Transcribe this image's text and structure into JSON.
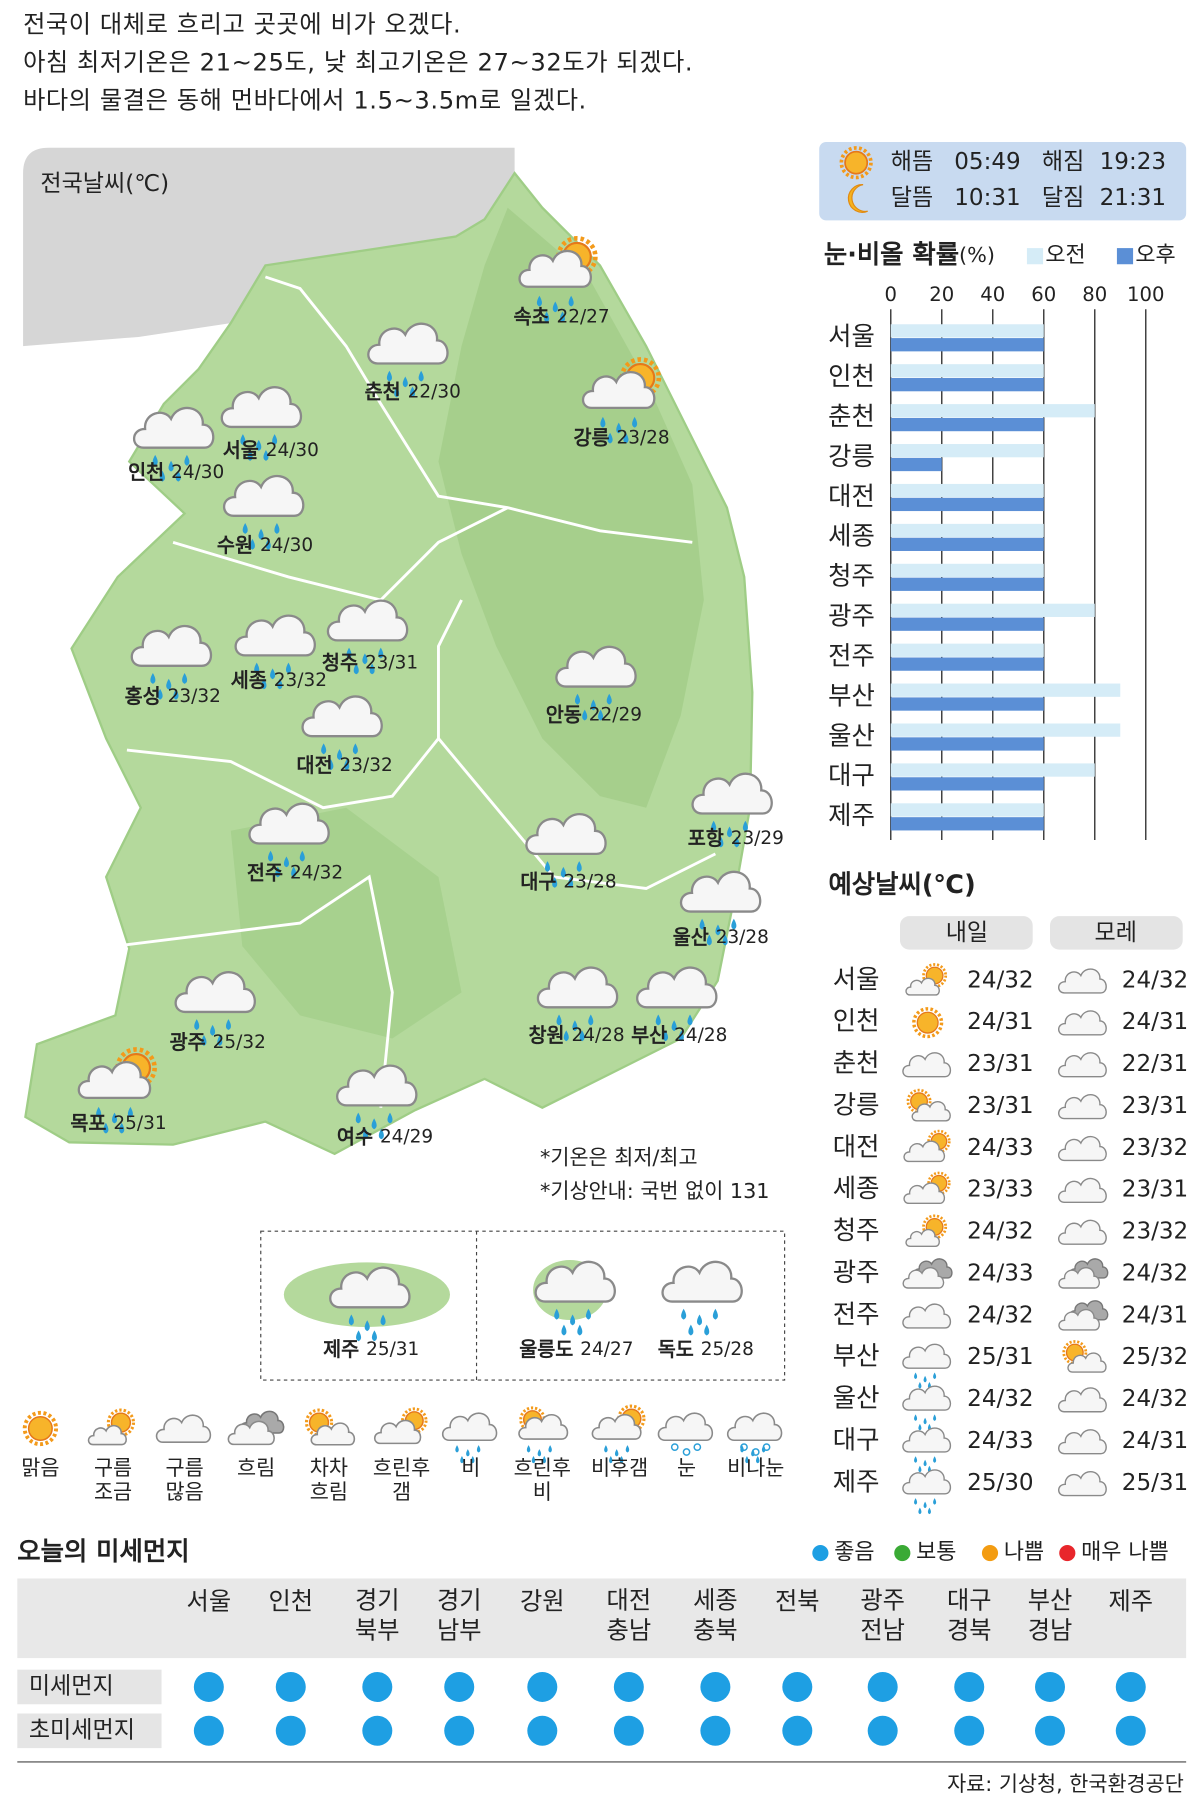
{
  "summary": [
    "전국이 대체로 흐리고 곳곳에 비가 오겠다.",
    "아침 최저기온은 21~25도, 낮 최고기온은 27~32도가 되겠다.",
    "바다의 물결은 동해 먼바다에서 1.5~3.5m로 일겠다."
  ],
  "map": {
    "title": "전국날씨(℃)",
    "cities": [
      {
        "name": "속초",
        "temp": "22/27",
        "icon": "비후갬"
      },
      {
        "name": "춘천",
        "temp": "22/30",
        "icon": "비"
      },
      {
        "name": "강릉",
        "temp": "23/28",
        "icon": "비후갬"
      },
      {
        "name": "서울",
        "temp": "24/30",
        "icon": "비"
      },
      {
        "name": "인천",
        "temp": "24/30",
        "icon": "비"
      },
      {
        "name": "수원",
        "temp": "24/30",
        "icon": "비"
      },
      {
        "name": "홍성",
        "temp": "23/32",
        "icon": "비"
      },
      {
        "name": "세종",
        "temp": "23/32",
        "icon": "비"
      },
      {
        "name": "청주",
        "temp": "23/31",
        "icon": "비"
      },
      {
        "name": "대전",
        "temp": "23/32",
        "icon": "비"
      },
      {
        "name": "안동",
        "temp": "22/29",
        "icon": "비"
      },
      {
        "name": "포항",
        "temp": "23/29",
        "icon": "비"
      },
      {
        "name": "전주",
        "temp": "24/32",
        "icon": "비"
      },
      {
        "name": "대구",
        "temp": "23/28",
        "icon": "비"
      },
      {
        "name": "울산",
        "temp": "23/28",
        "icon": "비"
      },
      {
        "name": "광주",
        "temp": "25/32",
        "icon": "비"
      },
      {
        "name": "창원",
        "temp": "24/28",
        "icon": "비"
      },
      {
        "name": "부산",
        "temp": "24/28",
        "icon": "비"
      },
      {
        "name": "목포",
        "temp": "25/31",
        "icon": "비후갬"
      },
      {
        "name": "여수",
        "temp": "24/29",
        "icon": "비"
      }
    ],
    "islands": [
      {
        "name": "제주",
        "temp": "25/31",
        "icon": "비"
      },
      {
        "name": "울릉도",
        "temp": "24/27",
        "icon": "비"
      },
      {
        "name": "독도",
        "temp": "25/28",
        "icon": "비"
      }
    ],
    "notes": [
      "*기온은 최저/최고",
      "*기상안내: 국번 없이 131"
    ]
  },
  "legend": [
    "맑음",
    "구름\n조금",
    "구름\n많음",
    "흐림",
    "차차\n흐림",
    "흐린후\n갬",
    "비",
    "흐린후\n비",
    "비후갬",
    "눈",
    "비나눈"
  ],
  "sun_moon": [
    {
      "label": "해뜸",
      "time": "05:49"
    },
    {
      "label": "해짐",
      "time": "19:23"
    },
    {
      "label": "달뜸",
      "time": "10:31"
    },
    {
      "label": "달짐",
      "time": "21:31"
    }
  ],
  "rain_chart": {
    "title": "눈·비올 확률",
    "unit": "(%)",
    "categories": [
      "서울",
      "인천",
      "춘천",
      "강릉",
      "대전",
      "세종",
      "청주",
      "광주",
      "전주",
      "부산",
      "울산",
      "대구",
      "제주"
    ],
    "series": [
      {
        "name": "오전",
        "color": "#d5ecf7",
        "values": [
          60,
          60,
          80,
          60,
          60,
          60,
          60,
          80,
          60,
          90,
          90,
          80,
          60
        ]
      },
      {
        "name": "오후",
        "color": "#5b8fd6",
        "values": [
          60,
          60,
          60,
          20,
          60,
          60,
          60,
          60,
          60,
          60,
          60,
          60,
          60
        ]
      }
    ],
    "xlim": [
      0,
      100
    ],
    "xticks": [
      0,
      20,
      40,
      60,
      80,
      100
    ]
  },
  "forecast": {
    "title": "예상날씨(℃)",
    "headers": [
      "내일",
      "모레"
    ],
    "rows": [
      {
        "city": "서울",
        "day1": {
          "icon": "구름\n조금",
          "temp": "24/32"
        },
        "day2": {
          "icon": "구름\n많음",
          "temp": "24/32"
        }
      },
      {
        "city": "인천",
        "day1": {
          "icon": "맑음",
          "temp": "24/31"
        },
        "day2": {
          "icon": "구름\n많음",
          "temp": "24/31"
        }
      },
      {
        "city": "춘천",
        "day1": {
          "icon": "구름\n많음",
          "temp": "23/31"
        },
        "day2": {
          "icon": "구름\n많음",
          "temp": "22/31"
        }
      },
      {
        "city": "강릉",
        "day1": {
          "icon": "차차\n흐림",
          "temp": "23/31"
        },
        "day2": {
          "icon": "구름\n많음",
          "temp": "23/31"
        }
      },
      {
        "city": "대전",
        "day1": {
          "icon": "흐린후\n갬",
          "temp": "24/33"
        },
        "day2": {
          "icon": "구름\n많음",
          "temp": "23/32"
        }
      },
      {
        "city": "세종",
        "day1": {
          "icon": "흐린후\n갬",
          "temp": "23/33"
        },
        "day2": {
          "icon": "구름\n많음",
          "temp": "23/31"
        }
      },
      {
        "city": "청주",
        "day1": {
          "icon": "구름\n조금",
          "temp": "24/32"
        },
        "day2": {
          "icon": "구름\n많음",
          "temp": "23/32"
        }
      },
      {
        "city": "광주",
        "day1": {
          "icon": "흐림",
          "temp": "24/33"
        },
        "day2": {
          "icon": "흐림",
          "temp": "24/32"
        }
      },
      {
        "city": "전주",
        "day1": {
          "icon": "구름\n많음",
          "temp": "24/32"
        },
        "day2": {
          "icon": "흐림",
          "temp": "24/31"
        }
      },
      {
        "city": "부산",
        "day1": {
          "icon": "비",
          "temp": "25/31"
        },
        "day2": {
          "icon": "차차\n흐림",
          "temp": "25/32"
        }
      },
      {
        "city": "울산",
        "day1": {
          "icon": "비",
          "temp": "24/32"
        },
        "day2": {
          "icon": "구름\n많음",
          "temp": "24/32"
        }
      },
      {
        "city": "대구",
        "day1": {
          "icon": "비",
          "temp": "24/33"
        },
        "day2": {
          "icon": "구름\n많음",
          "temp": "24/31"
        }
      },
      {
        "city": "제주",
        "day1": {
          "icon": "비",
          "temp": "25/30"
        },
        "day2": {
          "icon": "구름\n많음",
          "temp": "25/31"
        }
      }
    ]
  },
  "dust": {
    "title": "오늘의 미세먼지",
    "levels": [
      {
        "name": "좋음",
        "color": "#1e9fe3"
      },
      {
        "name": "보통",
        "color": "#3aaa35"
      },
      {
        "name": "나쁨",
        "color": "#f39c12"
      },
      {
        "name": "매우 나쁨",
        "color": "#e8262b"
      }
    ],
    "regions": [
      "서울",
      "인천",
      "경기\n북부",
      "경기\n남부",
      "강원",
      "대전\n충남",
      "세종\n충북",
      "전북",
      "광주\n전남",
      "대구\n경북",
      "부산\n경남",
      "제주"
    ],
    "rows": [
      {
        "label": "미세먼지",
        "grades": [
          "좋음",
          "좋음",
          "좋음",
          "좋음",
          "좋음",
          "좋음",
          "좋음",
          "좋음",
          "좋음",
          "좋음",
          "좋음",
          "좋음"
        ]
      },
      {
        "label": "초미세먼지",
        "grades": [
          "좋음",
          "좋음",
          "좋음",
          "좋음",
          "좋음",
          "좋음",
          "좋음",
          "좋음",
          "좋음",
          "좋음",
          "좋음",
          "좋음"
        ]
      }
    ]
  },
  "source": "자료: 기상청, 한국환경공단"
}
